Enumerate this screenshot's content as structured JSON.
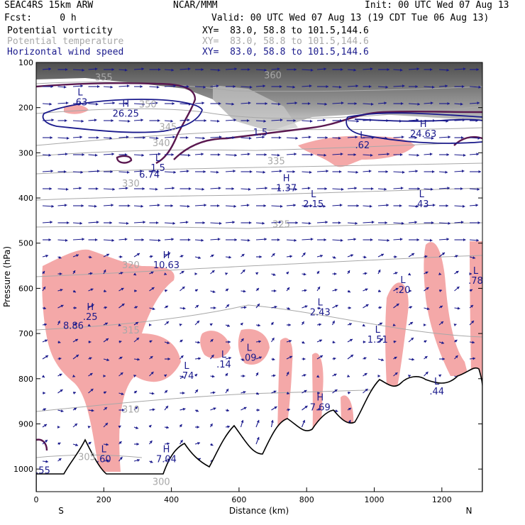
{
  "header": {
    "title": "SEAC4RS 15km ARW",
    "source": "NCAR/MMM",
    "init": "Init: 00 UTC Wed 07 Aug 13",
    "fcst": "Fcst:     0 h",
    "valid": "Valid: 00 UTC Wed 07 Aug 13 (19 CDT Tue 06 Aug 13)",
    "fields": [
      {
        "name": "Potential vorticity",
        "xy": "XY=  83.0, 58.8 to 101.5,144.6",
        "color": "#000000"
      },
      {
        "name": "Potential temperature",
        "xy": "XY=  83.0, 58.8 to 101.5,144.6",
        "color": "#a8a8a8"
      },
      {
        "name": "Horizontal wind speed",
        "xy": "XY=  83.0, 58.8 to 101.5,144.6",
        "color": "#1a1a8c"
      }
    ]
  },
  "chart_data": {
    "type": "cross-section",
    "xlabel": "Distance (km)",
    "ylabel": "Pressure (hPa)",
    "xlim": [
      0,
      1320
    ],
    "ylim": [
      1050,
      100
    ],
    "x_ticks": [
      0,
      200,
      400,
      600,
      800,
      1000,
      1200
    ],
    "y_ticks": [
      100,
      200,
      300,
      400,
      500,
      600,
      700,
      800,
      900,
      1000
    ],
    "x_end_labels": {
      "left": "S",
      "right": "N"
    },
    "colors": {
      "pv_shading": "#f4a8a8",
      "theta": "#a8a8a8",
      "wind": "#1a1a8c",
      "pv_contour": "#5a1850",
      "terrain": "#000000"
    },
    "theta_contours": [
      {
        "label": "355",
        "x": 200,
        "p": 140
      },
      {
        "label": "360",
        "x": 700,
        "p": 135
      },
      {
        "label": "350",
        "x": 330,
        "p": 200
      },
      {
        "label": "345",
        "x": 390,
        "p": 250
      },
      {
        "label": "340",
        "x": 370,
        "p": 285
      },
      {
        "label": "335",
        "x": 710,
        "p": 325
      },
      {
        "label": "330",
        "x": 280,
        "p": 375
      },
      {
        "label": "325",
        "x": 725,
        "p": 465
      },
      {
        "label": "320",
        "x": 280,
        "p": 555
      },
      {
        "label": "315",
        "x": 280,
        "p": 700
      },
      {
        "label": "310",
        "x": 280,
        "p": 875
      },
      {
        "label": "305",
        "x": 150,
        "p": 980
      },
      {
        "label": "300",
        "x": 370,
        "p": 1035
      }
    ],
    "annotations": [
      {
        "mark": "L",
        "value": ".63",
        "x": 130,
        "p": 195
      },
      {
        "mark": "H",
        "value": "26.25",
        "x": 265,
        "p": 220
      },
      {
        "mark": "L",
        "value": "1.5",
        "x": 360,
        "p": 340
      },
      {
        "mark": "",
        "value": "6.74",
        "x": 335,
        "p": 355
      },
      {
        "mark": "",
        "value": "1.5",
        "x": 663,
        "p": 262
      },
      {
        "mark": "H",
        "value": "1.37",
        "x": 740,
        "p": 385
      },
      {
        "mark": "L",
        "value": "2.15",
        "x": 820,
        "p": 420
      },
      {
        "mark": "H",
        "value": "24.63",
        "x": 1145,
        "p": 265
      },
      {
        "mark": "L",
        "value": ".62",
        "x": 965,
        "p": 290
      },
      {
        "mark": "L",
        "value": ".43",
        "x": 1140,
        "p": 420
      },
      {
        "mark": "H",
        "value": "10.63",
        "x": 385,
        "p": 555
      },
      {
        "mark": "L",
        "value": "2.43",
        "x": 840,
        "p": 660
      },
      {
        "mark": "L",
        "value": ".20",
        "x": 1085,
        "p": 610
      },
      {
        "mark": "L",
        "value": ".78",
        "x": 1300,
        "p": 590
      },
      {
        "mark": "H",
        "value": ".25",
        "x": 160,
        "p": 670
      },
      {
        "mark": "",
        "value": "8.86",
        "x": 110,
        "p": 690
      },
      {
        "mark": "L",
        "value": ".14",
        "x": 555,
        "p": 775
      },
      {
        "mark": "L",
        "value": ".09",
        "x": 630,
        "p": 760
      },
      {
        "mark": "L",
        "value": "1.51",
        "x": 1010,
        "p": 720
      },
      {
        "mark": "L",
        "value": ".74",
        "x": 445,
        "p": 800
      },
      {
        "mark": "H",
        "value": "7.69",
        "x": 840,
        "p": 870
      },
      {
        "mark": "L",
        "value": ".44",
        "x": 1185,
        "p": 835
      },
      {
        "mark": "L",
        "value": ".60",
        "x": 200,
        "p": 985
      },
      {
        "mark": "H",
        "value": "7.04",
        "x": 385,
        "p": 985
      },
      {
        "mark": "",
        "value": ".55",
        "x": 20,
        "p": 1010
      }
    ]
  }
}
